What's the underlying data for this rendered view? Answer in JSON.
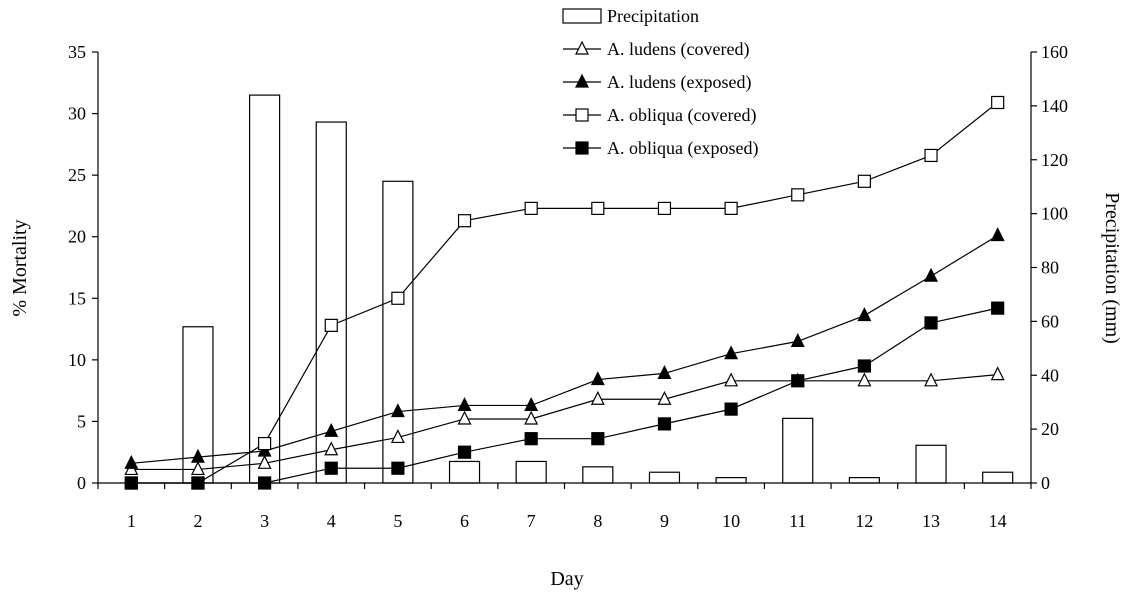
{
  "chart_data": {
    "type": "bar",
    "title": "",
    "xlabel": "Day",
    "ylabel": "% Mortality",
    "y2label": "Precipitation (mm)",
    "x": [
      1,
      2,
      3,
      4,
      5,
      6,
      7,
      8,
      9,
      10,
      11,
      12,
      13,
      14
    ],
    "x_tick_labels": [
      "1",
      "2",
      "3",
      "4",
      "5",
      "6",
      "7",
      "8",
      "9",
      "10",
      "11",
      "12",
      "13",
      "14"
    ],
    "ylim": [
      0,
      35
    ],
    "y_ticks": [
      0,
      5,
      10,
      15,
      20,
      25,
      30,
      35
    ],
    "y2lim": [
      0,
      160
    ],
    "y2_ticks": [
      0,
      20,
      40,
      60,
      80,
      100,
      120,
      140,
      160
    ],
    "grid": false,
    "legend_position": "top",
    "series": [
      {
        "name": "Precipitation",
        "type": "bar",
        "axis": "right",
        "marker": "open-bar",
        "values": [
          0,
          58,
          144,
          134,
          112,
          8,
          8,
          6,
          4,
          2,
          24,
          2,
          14,
          4
        ]
      },
      {
        "name": "A. ludens (covered)",
        "type": "line",
        "axis": "left",
        "marker": "open-triangle",
        "values": [
          1.1,
          1.1,
          1.6,
          2.7,
          3.7,
          5.2,
          5.2,
          6.8,
          6.8,
          8.3,
          8.3,
          8.3,
          8.3,
          8.8
        ]
      },
      {
        "name": "A. ludens (exposed)",
        "type": "line",
        "axis": "left",
        "marker": "filled-triangle",
        "values": [
          1.6,
          2.1,
          2.6,
          4.2,
          5.8,
          6.3,
          6.3,
          8.4,
          8.9,
          10.5,
          11.5,
          13.6,
          16.8,
          20.1
        ]
      },
      {
        "name": "A. obliqua (covered)",
        "type": "line",
        "axis": "left",
        "marker": "open-square",
        "values": [
          0,
          0,
          3.2,
          12.8,
          15.0,
          21.3,
          22.3,
          22.3,
          22.3,
          22.3,
          23.4,
          24.5,
          26.6,
          30.9
        ]
      },
      {
        "name": "A. obliqua (exposed)",
        "type": "line",
        "axis": "left",
        "marker": "filled-square",
        "values": [
          0,
          0,
          0,
          1.2,
          1.2,
          2.5,
          3.6,
          3.6,
          4.8,
          6.0,
          8.3,
          9.5,
          13.0,
          14.2
        ]
      }
    ]
  }
}
